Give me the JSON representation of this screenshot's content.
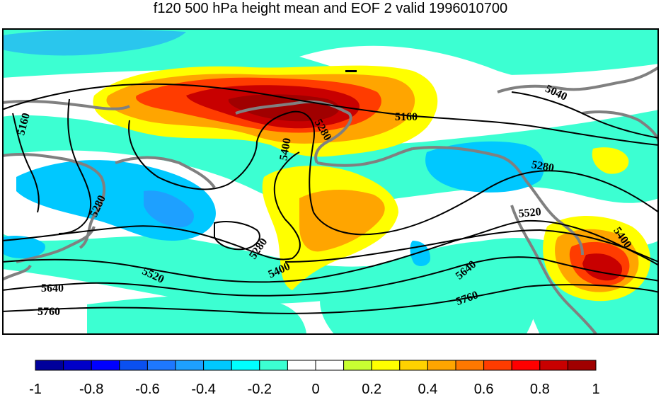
{
  "title": "f120 500 hPa height mean and EOF 2 valid 1996010700",
  "contour_labels": [
    "5160",
    "5040",
    "5160",
    "5280",
    "5400",
    "5280",
    "5280",
    "5280",
    "5520",
    "5400",
    "5400",
    "5520",
    "5640",
    "5640",
    "5760",
    "5760"
  ],
  "colorbar": {
    "tick_labels": [
      "-1",
      "-0.8",
      "-0.6",
      "-0.4",
      "-0.2",
      "0",
      "0.2",
      "0.4",
      "0.6",
      "0.8",
      "1"
    ],
    "colors": [
      "#00009b",
      "#0000c8",
      "#0000ff",
      "#0a50f0",
      "#1e78ff",
      "#1ea0ff",
      "#00c8ff",
      "#00ffff",
      "#3cffd2",
      "#ffffff",
      "#ffffff",
      "#c8ff32",
      "#ffff00",
      "#ffd200",
      "#ffa500",
      "#ff7800",
      "#ff3c00",
      "#ff0000",
      "#c80000",
      "#a00000"
    ]
  },
  "legend_colors": {
    "land_outline": "#808080",
    "contour": "#000000"
  }
}
